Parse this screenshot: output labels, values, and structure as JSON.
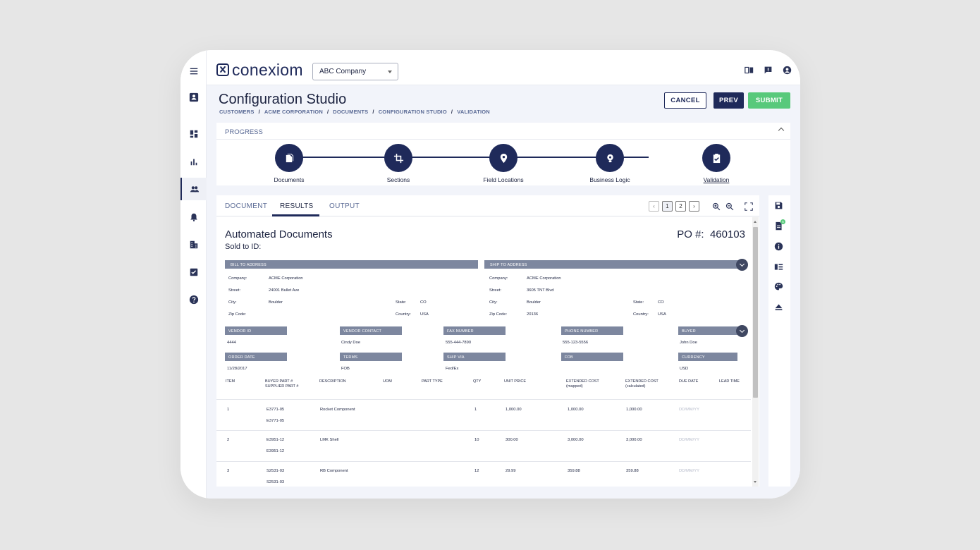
{
  "app": {
    "logo_text": "conexiom",
    "company_select": "ABC Company"
  },
  "page": {
    "title": "Configuration Studio",
    "breadcrumbs": [
      "CUSTOMERS",
      "ACME CORPORATION",
      "DOCUMENTS",
      "CONFIGURATION STUDIO",
      "VALIDATION"
    ]
  },
  "actions": {
    "cancel": "CANCEL",
    "prev": "PREV",
    "submit": "SUBMIT"
  },
  "progress": {
    "label": "PROGRESS",
    "steps": [
      "Documents",
      "Sections",
      "Field Locations",
      "Business Logic",
      "Validation"
    ],
    "current_step": "Validation"
  },
  "tabs": [
    "DOCUMENT",
    "RESULTS",
    "OUTPUT"
  ],
  "active_tab": "RESULTS",
  "pager": {
    "prev": "‹",
    "pages": [
      "1",
      "2"
    ],
    "next": "›",
    "current": "1"
  },
  "document": {
    "title": "Automated Documents",
    "sold_to": "Sold to ID:",
    "po_label": "PO #:",
    "po_number": "460103",
    "bill_to": {
      "header": "BILL TO ADDRESS",
      "company_label": "Company:",
      "company": "ACME Corporation",
      "street_label": "Street:",
      "street": "24001 Bullet Ave",
      "city_label": "City:",
      "city": "Boulder",
      "state_label": "State:",
      "state": "CO",
      "zip_label": "Zip Code:",
      "zip": "",
      "country_label": "Country:",
      "country": "USA"
    },
    "ship_to": {
      "header": "SHIP TO ADDRESS",
      "company_label": "Company:",
      "company": "ACME Corporation",
      "street_label": "Street:",
      "street": "3605 TNT Blvd",
      "city_label": "City:",
      "city": "Boulder",
      "state_label": "State:",
      "state": "CO",
      "zip_label": "Zip Code:",
      "zip": "20136",
      "country_label": "Country:",
      "country": "USA"
    },
    "fields_row1": [
      {
        "label": "VENDOR ID",
        "value": "4444"
      },
      {
        "label": "VENDOR CONTACT",
        "value": "Cindy Doe"
      },
      {
        "label": "FAX NUMBER",
        "value": "555-444-7890"
      },
      {
        "label": "PHONE NUMBER",
        "value": "555-123-5556"
      },
      {
        "label": "BUYER",
        "value": "John Doe"
      }
    ],
    "fields_row2": [
      {
        "label": "ORDER DATE",
        "value": "11/28/2017"
      },
      {
        "label": "TERMS",
        "value": "FOB"
      },
      {
        "label": "SHIP VIA",
        "value": "Fed/Ex"
      },
      {
        "label": "FOB",
        "value": ""
      },
      {
        "label": "CURRENCY",
        "value": "USD"
      }
    ],
    "columns": {
      "item": "ITEM",
      "buyer_part": "BUYER PART #",
      "supplier_part": "SUPPLIER PART #",
      "description": "DESCRIPTION",
      "uom": "UOM",
      "part_type": "PART TYPE",
      "qty": "QTY",
      "unit_price": "UNIT PRICE",
      "ext_mapped": "EXTENDED COST",
      "ext_mapped_sub": "(mapped)",
      "ext_calc": "EXTENDED COST",
      "ext_calc_sub": "(calculated)",
      "due_date": "DUE DATE",
      "lead_time": "LEAD TIME"
    },
    "rows": [
      {
        "item": "1",
        "buyer_part": "E3771-05",
        "supplier_part": "E3771-05",
        "description": "Rocket Component",
        "qty": "1",
        "unit_price": "1,000.00",
        "ext_mapped": "1,000.00",
        "ext_calc": "1,000.00",
        "due_date": "DD/MM/YY"
      },
      {
        "item": "2",
        "buyer_part": "E3951-12",
        "supplier_part": "E3951-12",
        "description": "LMK Shell",
        "qty": "10",
        "unit_price": "300.00",
        "ext_mapped": "3,000.00",
        "ext_calc": "3,000.00",
        "due_date": "DD/MM/YY"
      },
      {
        "item": "3",
        "buyer_part": "S2531-03",
        "supplier_part": "S2531-03",
        "description": "RB Component",
        "qty": "12",
        "unit_price": "29.99",
        "ext_mapped": "359.88",
        "ext_calc": "359.88",
        "due_date": "DD/MM/YY"
      }
    ]
  },
  "side_tools": {
    "badge_count": "5"
  },
  "icons": {
    "rail": [
      "menu-icon",
      "contact-card-icon",
      "dashboard-icon",
      "bar-chart-icon",
      "people-icon",
      "bell-icon",
      "building-icon",
      "checklist-icon",
      "help-icon"
    ],
    "top": [
      "book-icon",
      "feedback-icon",
      "account-icon"
    ],
    "tools": [
      "save-icon",
      "document-icon",
      "info-icon",
      "columns-icon",
      "palette-icon",
      "eject-icon"
    ]
  },
  "colors": {
    "primary": "#1f2a5a",
    "submit": "#58c97b",
    "section_bar": "#7d879f"
  }
}
